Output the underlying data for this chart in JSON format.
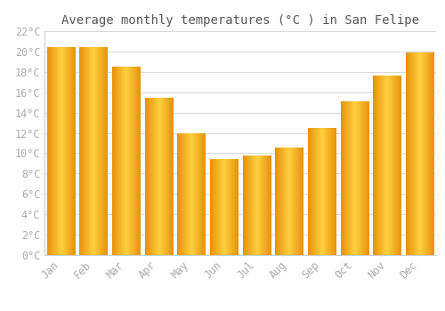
{
  "title": "Average monthly temperatures (°C ) in San Felipe",
  "months": [
    "Jan",
    "Feb",
    "Mar",
    "Apr",
    "May",
    "Jun",
    "Jul",
    "Aug",
    "Sep",
    "Oct",
    "Nov",
    "Dec"
  ],
  "values": [
    20.4,
    20.4,
    18.5,
    15.4,
    11.9,
    9.4,
    9.7,
    10.5,
    12.4,
    15.1,
    17.6,
    19.9
  ],
  "bar_color_left": "#E8920A",
  "bar_color_center": "#FFD040",
  "bar_color_right": "#E8920A",
  "ylim": [
    0,
    22
  ],
  "ytick_step": 2,
  "background_color": "#ffffff",
  "grid_color": "#d8d8d8",
  "title_fontsize": 10,
  "tick_fontsize": 8.5,
  "tick_label_color": "#aaaaaa",
  "title_color": "#555555",
  "bar_width": 0.85
}
